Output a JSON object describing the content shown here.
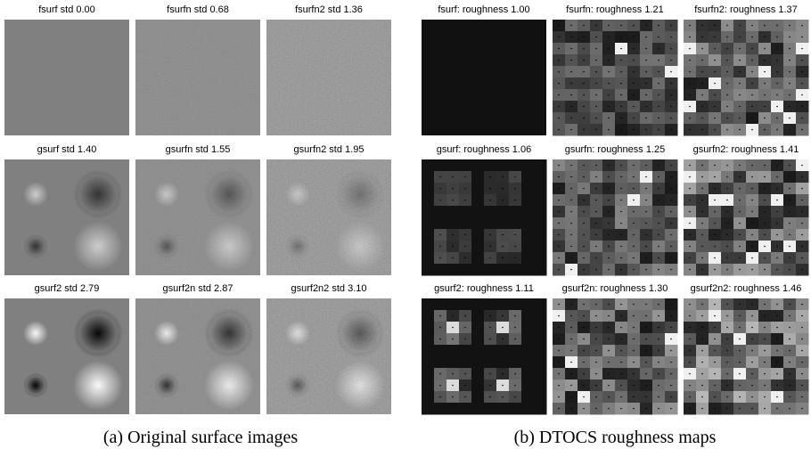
{
  "panel_a": {
    "titles": [
      [
        "fsurf  std 0.00",
        "fsurfn  std 0.68",
        "fsurfn2  std 1.36"
      ],
      [
        "gsurf  std 1.40",
        "gsurfn  std 1.55",
        "gsurfn2  std 1.95"
      ],
      [
        "gsurf2  std 2.79",
        "gsurf2n  std 2.87",
        "gsurf2n2  std 3.10"
      ]
    ],
    "caption": "(a) Original surface images"
  },
  "panel_b": {
    "titles": [
      [
        "fsurf: roughness 1.00",
        "fsurfn: roughness 1.21",
        "fsurfn2: roughness 1.37"
      ],
      [
        "gsurf: roughness 1.06",
        "gsurfn: roughness 1.25",
        "gsurfn2: roughness 1.41"
      ],
      [
        "gsurf2: roughness 1.11",
        "gsurf2n: roughness 1.30",
        "gsurf2n2: roughness 1.46"
      ]
    ],
    "caption": "(b) DTOCS roughness maps"
  }
}
